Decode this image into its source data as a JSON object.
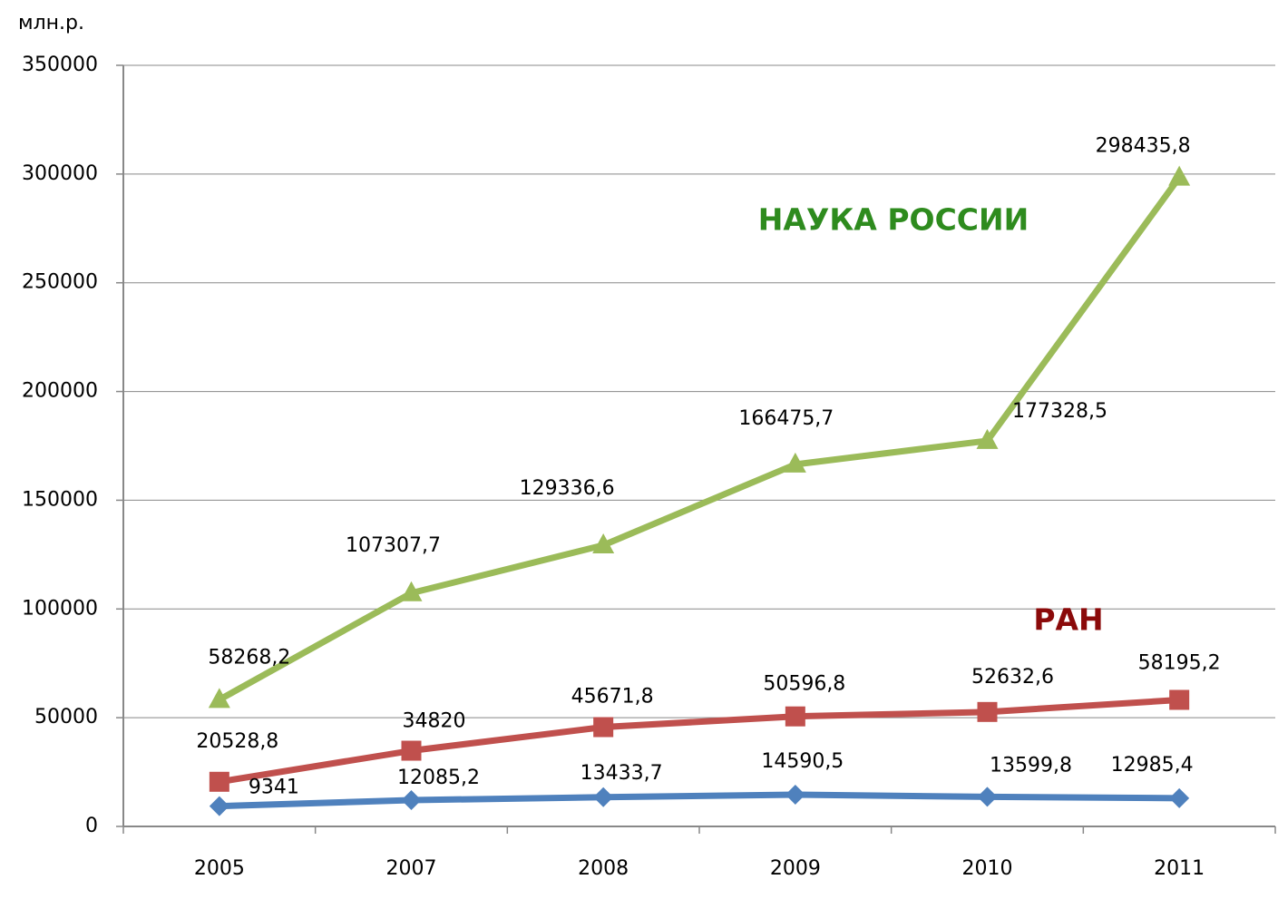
{
  "chart_data": {
    "type": "line",
    "y_label": "млн.р.",
    "categories": [
      "2005",
      "2007",
      "2008",
      "2009",
      "2010",
      "2011"
    ],
    "ylim": [
      0,
      350000
    ],
    "yticks": [
      0,
      50000,
      100000,
      150000,
      200000,
      250000,
      300000,
      350000
    ],
    "grid": true,
    "series": [
      {
        "name": "НАУКА РОССИИ",
        "color": "#9bbb59",
        "label_color": "#2e8b1e",
        "marker": "triangle",
        "values": [
          58268.2,
          107307.7,
          129336.6,
          166475.7,
          177328.5,
          298435.8
        ],
        "value_labels": [
          "58268,2",
          "107307,7",
          "129336,6",
          "166475,7",
          "177328,5",
          "298435,8"
        ]
      },
      {
        "name": "РАН",
        "color": "#c0504d",
        "label_color": "#8b0a0a",
        "marker": "square",
        "values": [
          20528.8,
          34820,
          45671.8,
          50596.8,
          52632.6,
          58195.2
        ],
        "value_labels": [
          "20528,8",
          "34820",
          "45671,8",
          "50596,8",
          "52632,6",
          "58195,2"
        ]
      },
      {
        "color": "#4f81bd",
        "marker": "diamond",
        "values": [
          9341,
          12085.2,
          13433.7,
          14590.5,
          13599.8,
          12985.4
        ],
        "value_labels": [
          "9341",
          "12085,2",
          "13433,7",
          "14590,5",
          "13599,8",
          "12985,4"
        ]
      }
    ]
  }
}
